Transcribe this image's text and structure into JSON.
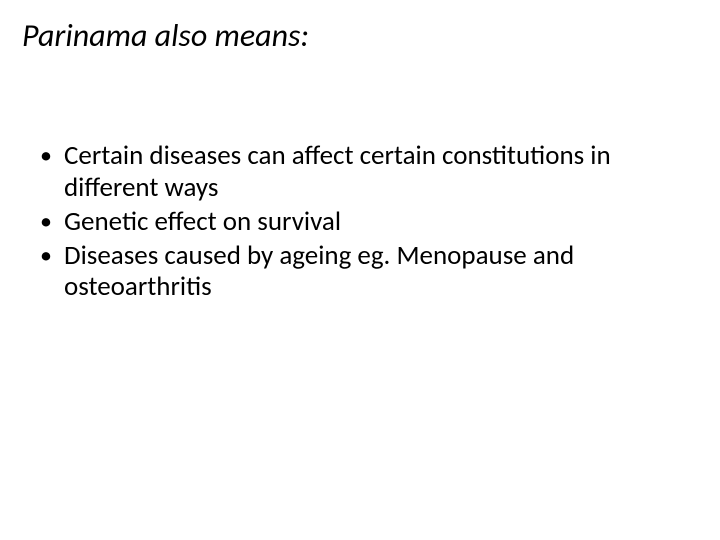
{
  "title": "Parinama also means:",
  "bullets": [
    "Certain diseases can affect certain constitutions in different ways",
    "Genetic effect on survival",
    "Diseases caused by ageing eg. Menopause and osteoarthritis"
  ],
  "style": {
    "background_color": "#ffffff",
    "text_color": "#000000",
    "title_fontsize": 32,
    "title_italic": true,
    "body_fontsize": 27,
    "bullet_char": "•",
    "font_family": "Calibri"
  }
}
